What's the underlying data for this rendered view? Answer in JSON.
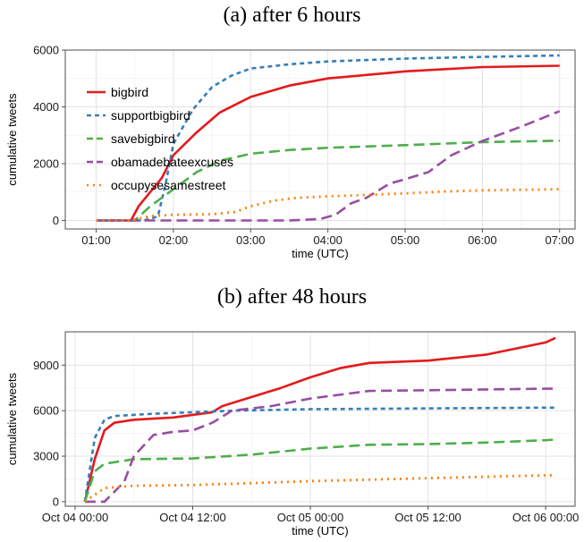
{
  "chart_data": [
    {
      "type": "line",
      "title": "(a) after 6 hours",
      "xlabel": "time (UTC)",
      "ylabel": "cumulative tweets",
      "x_ticks": [
        "01:00",
        "02:00",
        "03:00",
        "04:00",
        "05:00",
        "06:00",
        "07:00"
      ],
      "x_tick_values": [
        1,
        2,
        3,
        4,
        5,
        6,
        7
      ],
      "xlim": [
        0.6,
        7.2
      ],
      "y_ticks": [
        "0",
        "2000",
        "4000",
        "6000"
      ],
      "y_tick_values": [
        0,
        2000,
        4000,
        6000
      ],
      "ylim": [
        -300,
        6000
      ],
      "grid": true,
      "legend": "top-left",
      "series": [
        {
          "name": "bigbird",
          "color": "#e41a1c",
          "dash": "solid",
          "x": [
            1.0,
            1.45,
            1.55,
            1.7,
            1.85,
            2.0,
            2.3,
            2.6,
            3.0,
            3.5,
            4.0,
            5.0,
            6.0,
            7.0
          ],
          "y": [
            0,
            0,
            500,
            1000,
            1500,
            2300,
            3100,
            3800,
            4350,
            4750,
            5000,
            5250,
            5400,
            5450
          ]
        },
        {
          "name": "supportbigbird",
          "color": "#377eb8",
          "dash": "short",
          "x": [
            1.0,
            1.6,
            1.7,
            1.8,
            1.9,
            2.0,
            2.25,
            2.5,
            2.75,
            3.0,
            3.5,
            4.0,
            5.0,
            6.0,
            7.0
          ],
          "y": [
            0,
            0,
            50,
            150,
            1300,
            2700,
            3900,
            4700,
            5100,
            5350,
            5500,
            5600,
            5700,
            5760,
            5810
          ]
        },
        {
          "name": "savebigbird",
          "color": "#4daf4a",
          "dash": "long",
          "x": [
            1.0,
            1.5,
            1.7,
            2.0,
            2.3,
            2.6,
            3.0,
            3.5,
            4.0,
            5.0,
            6.0,
            7.0
          ],
          "y": [
            0,
            0,
            500,
            1100,
            1700,
            2100,
            2350,
            2480,
            2560,
            2650,
            2760,
            2810
          ]
        },
        {
          "name": "obamadebateexcuses",
          "color": "#984ea3",
          "dash": "long",
          "x": [
            1.0,
            3.5,
            3.9,
            4.1,
            4.3,
            4.5,
            4.8,
            5.0,
            5.3,
            5.6,
            6.0,
            6.5,
            7.0
          ],
          "y": [
            0,
            0,
            50,
            200,
            600,
            800,
            1300,
            1450,
            1700,
            2300,
            2800,
            3300,
            3850
          ]
        },
        {
          "name": "occupysesamestreet",
          "color": "#ff7f00",
          "dash": "dot",
          "x": [
            1.0,
            1.45,
            1.7,
            2.0,
            2.5,
            2.8,
            3.0,
            3.3,
            3.6,
            4.0,
            4.5,
            5.0,
            5.5,
            6.0,
            7.0
          ],
          "y": [
            0,
            0,
            150,
            200,
            220,
            300,
            500,
            700,
            800,
            850,
            900,
            950,
            1020,
            1060,
            1100
          ]
        }
      ]
    },
    {
      "type": "line",
      "title": "(b) after 48 hours",
      "xlabel": "time (UTC)",
      "ylabel": "cumulative tweets",
      "x_ticks": [
        "Oct 04 00:00",
        "Oct 04 12:00",
        "Oct 05 00:00",
        "Oct 05 12:00",
        "Oct 06 00:00"
      ],
      "x_tick_values": [
        "Oct 04 00:00",
        "Oct 04 12:00",
        "Oct 05 00:00",
        "Oct 05 12:00",
        "Oct 06 00:00"
      ],
      "xlim": [
        "Oct 03 23:00",
        "Oct 06 03:00"
      ],
      "y_ticks": [
        "0",
        "3000",
        "6000",
        "9000"
      ],
      "y_tick_values": [
        0,
        3000,
        6000,
        9000
      ],
      "ylim": [
        -300,
        11200
      ],
      "grid": true,
      "series": [
        {
          "name": "bigbird",
          "color": "#e41a1c",
          "dash": "solid",
          "x": [
            "Oct 04 01:00",
            "Oct 04 02:00",
            "Oct 04 03:00",
            "Oct 04 04:00",
            "Oct 04 06:00",
            "Oct 04 10:00",
            "Oct 04 14:00",
            "Oct 04 15:00",
            "Oct 04 18:00",
            "Oct 04 21:00",
            "Oct 05 00:00",
            "Oct 05 03:00",
            "Oct 05 06:00",
            "Oct 05 12:00",
            "Oct 05 18:00",
            "Oct 06 00:00",
            "Oct 06 01:00"
          ],
          "y": [
            0,
            2800,
            4700,
            5200,
            5400,
            5550,
            5900,
            6300,
            6900,
            7500,
            8200,
            8800,
            9150,
            9300,
            9700,
            10500,
            10800
          ]
        },
        {
          "name": "supportbigbird",
          "color": "#377eb8",
          "dash": "short",
          "x": [
            "Oct 04 01:00",
            "Oct 04 02:00",
            "Oct 04 03:00",
            "Oct 04 04:00",
            "Oct 04 08:00",
            "Oct 04 12:00",
            "Oct 04 16:00",
            "Oct 05 00:00",
            "Oct 05 12:00",
            "Oct 06 00:00",
            "Oct 06 01:00"
          ],
          "y": [
            0,
            4200,
            5400,
            5650,
            5800,
            5900,
            6000,
            6100,
            6150,
            6200,
            6200
          ]
        },
        {
          "name": "savebigbird",
          "color": "#4daf4a",
          "dash": "long",
          "x": [
            "Oct 04 01:00",
            "Oct 04 02:00",
            "Oct 04 03:00",
            "Oct 04 06:00",
            "Oct 04 12:00",
            "Oct 04 18:00",
            "Oct 05 00:00",
            "Oct 05 06:00",
            "Oct 05 12:00",
            "Oct 05 18:00",
            "Oct 06 00:00",
            "Oct 06 01:00"
          ],
          "y": [
            0,
            2000,
            2500,
            2800,
            2850,
            3100,
            3500,
            3750,
            3800,
            3900,
            4050,
            4100
          ]
        },
        {
          "name": "obamadebateexcuses",
          "color": "#984ea3",
          "dash": "long",
          "x": [
            "Oct 04 01:00",
            "Oct 04 03:00",
            "Oct 04 05:00",
            "Oct 04 06:00",
            "Oct 04 08:00",
            "Oct 04 10:00",
            "Oct 04 12:00",
            "Oct 04 14:00",
            "Oct 04 16:00",
            "Oct 04 20:00",
            "Oct 05 00:00",
            "Oct 05 06:00",
            "Oct 05 12:00",
            "Oct 06 00:00",
            "Oct 06 01:00"
          ],
          "y": [
            0,
            0,
            1300,
            3000,
            4400,
            4600,
            4700,
            5200,
            6000,
            6300,
            6800,
            7300,
            7350,
            7450,
            7450
          ]
        },
        {
          "name": "occupysesamestreet",
          "color": "#ff7f00",
          "dash": "dot",
          "x": [
            "Oct 04 01:00",
            "Oct 04 03:00",
            "Oct 04 06:00",
            "Oct 04 12:00",
            "Oct 05 00:00",
            "Oct 05 12:00",
            "Oct 06 01:00"
          ],
          "y": [
            0,
            900,
            1050,
            1100,
            1350,
            1550,
            1750
          ]
        }
      ]
    }
  ]
}
